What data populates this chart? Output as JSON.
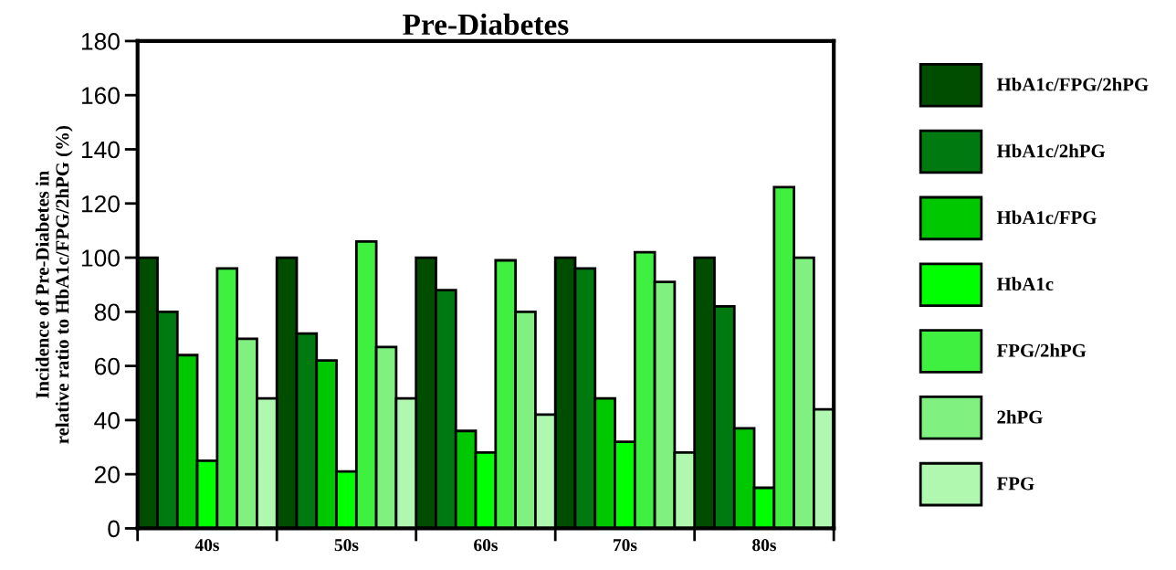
{
  "chart_data": {
    "type": "bar",
    "title": "Pre-Diabetes",
    "ylabel": "Incidence of Pre-Diabetes in\nrelative ratio to HbA1c/FPG/2hPG (%)",
    "categories": [
      "40s",
      "50s",
      "60s",
      "70s",
      "80s"
    ],
    "series": [
      {
        "name": "HbA1c/FPG/2hPG",
        "color": "#004d00",
        "values": [
          100,
          100,
          100,
          100,
          100
        ]
      },
      {
        "name": "HbA1c/2hPG",
        "color": "#007a10",
        "values": [
          80,
          72,
          88,
          96,
          82
        ]
      },
      {
        "name": "HbA1c/FPG",
        "color": "#00c800",
        "values": [
          64,
          62,
          36,
          48,
          37
        ]
      },
      {
        "name": "HbA1c",
        "color": "#00ff00",
        "values": [
          25,
          21,
          28,
          32,
          15
        ]
      },
      {
        "name": "FPG/2hPG",
        "color": "#40f040",
        "values": [
          96,
          106,
          99,
          102,
          126
        ]
      },
      {
        "name": "2hPG",
        "color": "#80f080",
        "values": [
          70,
          67,
          80,
          91,
          100
        ]
      },
      {
        "name": "FPG",
        "color": "#b0f8b0",
        "values": [
          48,
          48,
          42,
          28,
          44
        ]
      }
    ],
    "ylim": [
      0,
      180
    ],
    "yticks": [
      0,
      20,
      40,
      60,
      80,
      100,
      120,
      140,
      160,
      180
    ],
    "grid": false,
    "legend": "right"
  }
}
